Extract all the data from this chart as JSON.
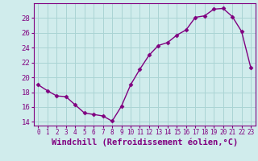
{
  "x": [
    0,
    1,
    2,
    3,
    4,
    5,
    6,
    7,
    8,
    9,
    10,
    11,
    12,
    13,
    14,
    15,
    16,
    17,
    18,
    19,
    20,
    21,
    22,
    23
  ],
  "y": [
    19.0,
    18.2,
    17.5,
    17.4,
    16.3,
    15.2,
    15.0,
    14.8,
    14.1,
    16.1,
    19.0,
    21.1,
    23.0,
    24.3,
    24.7,
    25.7,
    26.4,
    28.1,
    28.3,
    29.2,
    29.3,
    28.2,
    26.2,
    21.3
  ],
  "line_color": "#800080",
  "marker": "D",
  "marker_size": 2.5,
  "background_color": "#d0ecec",
  "grid_color": "#aad4d4",
  "xlabel": "Windchill (Refroidissement éolien,°C)",
  "xlabel_fontsize": 7.5,
  "tick_color": "#800080",
  "ylim": [
    13.5,
    30.0
  ],
  "yticks": [
    14,
    16,
    18,
    20,
    22,
    24,
    26,
    28
  ],
  "xlim": [
    -0.5,
    23.5
  ],
  "xticks": [
    0,
    1,
    2,
    3,
    4,
    5,
    6,
    7,
    8,
    9,
    10,
    11,
    12,
    13,
    14,
    15,
    16,
    17,
    18,
    19,
    20,
    21,
    22,
    23
  ]
}
